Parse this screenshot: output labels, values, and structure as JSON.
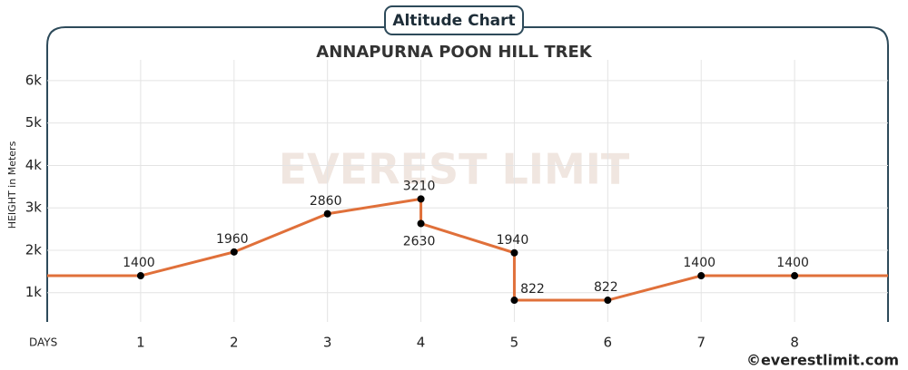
{
  "header": "Altitude Chart",
  "credit": "©everestlimit.com",
  "watermark": "EVEREST LIMIT",
  "chart_data": {
    "type": "line",
    "title": "ANNAPURNA POON HILL TREK",
    "x_label": "DAYS",
    "y_label": "HEIGHT in Meters",
    "x": [
      0,
      1,
      2,
      3,
      4,
      4,
      5,
      5,
      6,
      7,
      8,
      9
    ],
    "series": [
      {
        "name": "Altitude",
        "color": "#e0703a",
        "values": [
          1400,
          1400,
          1960,
          2860,
          3210,
          2630,
          1940,
          822,
          822,
          1400,
          1400,
          1400
        ]
      }
    ],
    "xlim": [
      0,
      9
    ],
    "xticks": [
      1,
      2,
      3,
      4,
      5,
      6,
      7,
      8
    ],
    "ylim": [
      310,
      7260
    ],
    "yticks": [
      {
        "value": 1000,
        "label": "1k"
      },
      {
        "value": 2000,
        "label": "2k"
      },
      {
        "value": 3000,
        "label": "3k"
      },
      {
        "value": 4000,
        "label": "4k"
      },
      {
        "value": 5000,
        "label": "5k"
      },
      {
        "value": 6000,
        "label": "6k"
      }
    ],
    "grid": true
  }
}
